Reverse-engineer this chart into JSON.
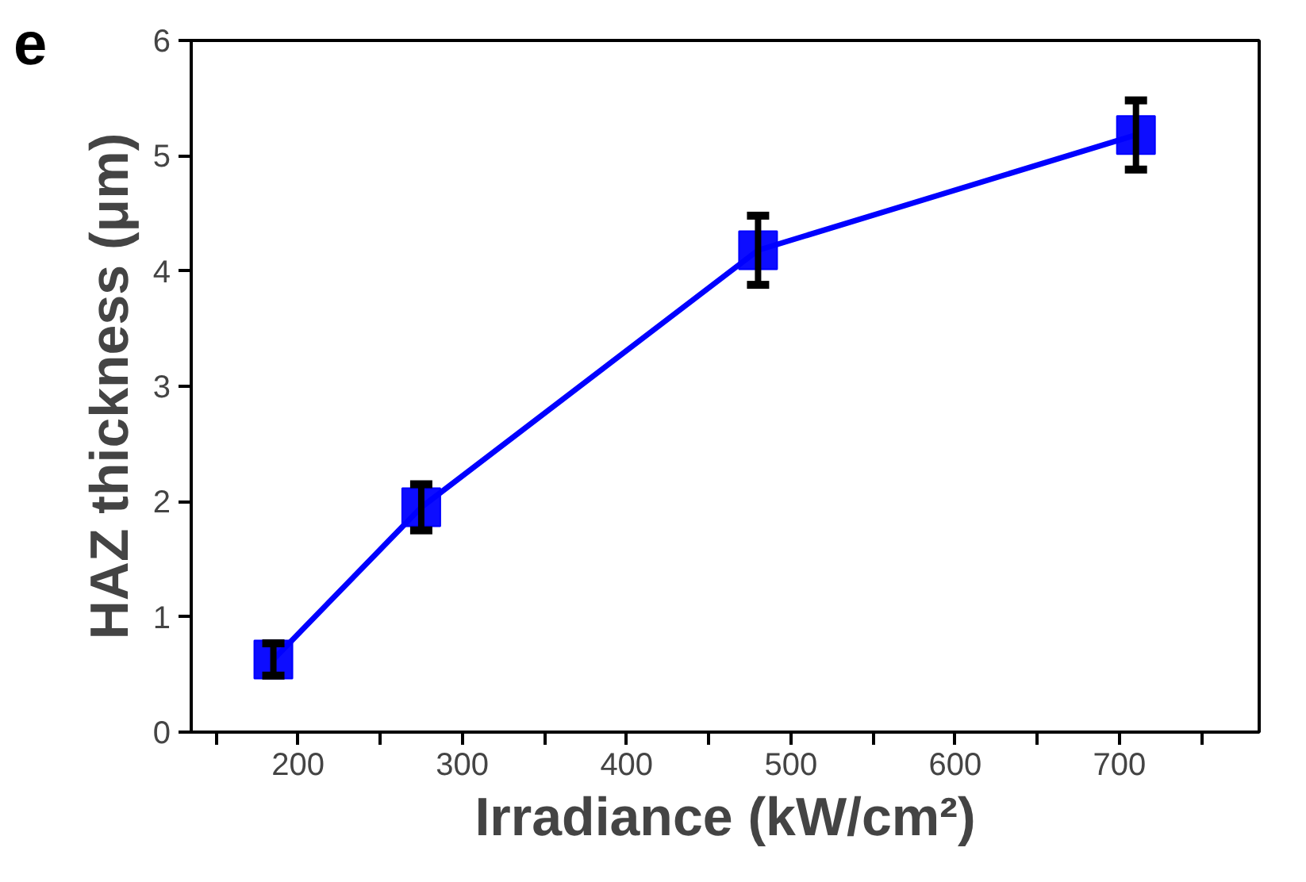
{
  "chart_data": {
    "type": "line",
    "xlabel": "Irradiance (kW/cm²)",
    "ylabel": "HAZ thickness (μm)",
    "annotations": [
      "e"
    ],
    "x": [
      185,
      275,
      480,
      710
    ],
    "series": [
      {
        "color": "#0000ff",
        "values": [
          0.63,
          1.95,
          4.18,
          5.18
        ],
        "errors": [
          0.14,
          0.2,
          0.3,
          0.3
        ]
      }
    ],
    "xlim": [
      135,
      785
    ],
    "ylim": [
      0,
      6
    ],
    "xticks": [
      {
        "value": 150,
        "label": null
      },
      200,
      {
        "value": 250,
        "label": null
      },
      300,
      {
        "value": 350,
        "label": null
      },
      400,
      {
        "value": 450,
        "label": null
      },
      500,
      {
        "value": 550,
        "label": null
      },
      600,
      {
        "value": 650,
        "label": null
      },
      700,
      {
        "value": 750,
        "label": null
      }
    ],
    "yticks": [
      0,
      1,
      2,
      3,
      4,
      5,
      6
    ],
    "marker": "square",
    "line_style": "solid",
    "grid": false
  }
}
